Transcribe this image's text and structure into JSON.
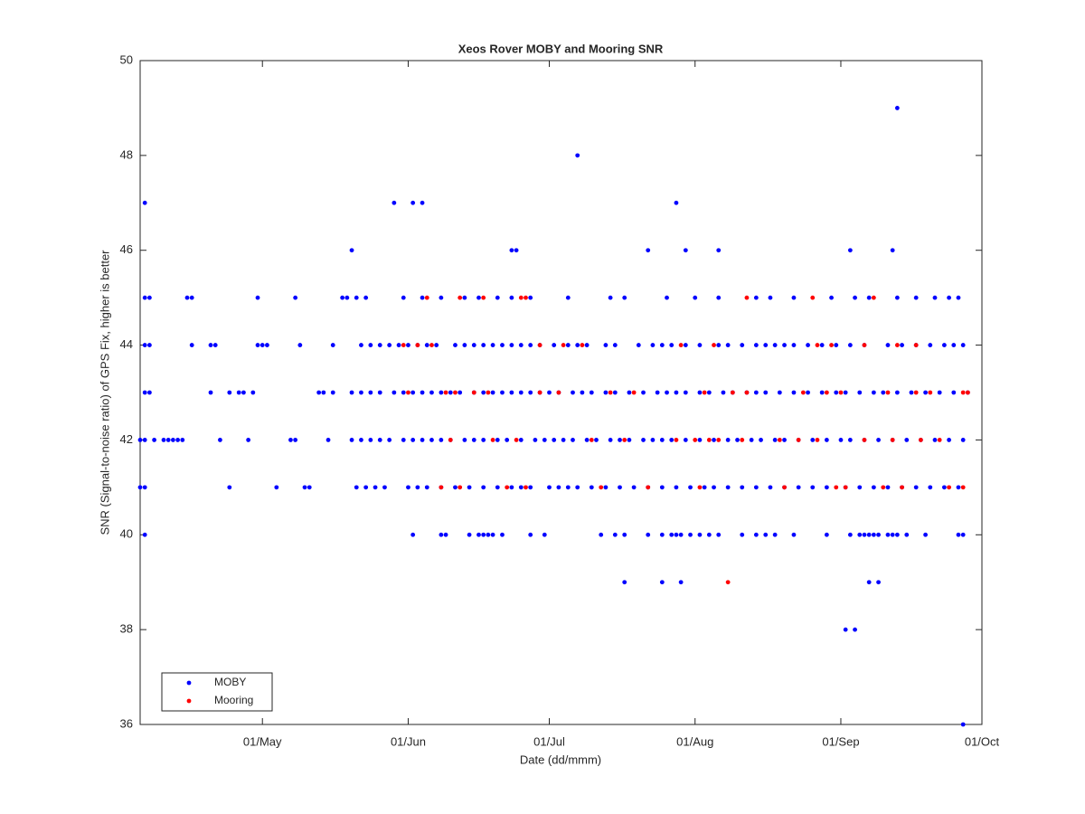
{
  "chart_data": {
    "type": "scatter",
    "title": "Xeos Rover MOBY and Mooring SNR",
    "x_label": "Date (dd/mmm)",
    "y_label": "SNR (Signal-to-noise ratio) of GPS Fix, higher is better",
    "xlim": [
      "05/Apr",
      "01/Oct"
    ],
    "xticks": [
      "01/May",
      "01/Jun",
      "01/Jul",
      "01/Aug",
      "01/Sep",
      "01/Oct"
    ],
    "ylim": [
      36,
      50
    ],
    "yticks": [
      36,
      38,
      40,
      42,
      44,
      46,
      48,
      50
    ],
    "legend": "southwest",
    "series": [
      {
        "name": "MOBY",
        "color": "#0000ff",
        "x": [
          "06/Apr",
          "29/May",
          "02/Jun",
          "04/Jun",
          "28/Jul",
          "13/Sep",
          "07/Jul",
          "20/May",
          "23/Jun",
          "24/Jun",
          "22/Jul",
          "30/Jul",
          "06/Aug",
          "03/Sep",
          "12/Sep",
          "06/Apr",
          "07/Apr",
          "15/Apr",
          "16/Apr",
          "30/Apr",
          "08/May",
          "18/May",
          "19/May",
          "21/May",
          "23/May",
          "31/May",
          "04/Jun",
          "08/Jun",
          "13/Jun",
          "16/Jun",
          "20/Jun",
          "23/Jun",
          "27/Jun",
          "05/Jul",
          "14/Jul",
          "17/Jul",
          "26/Jul",
          "01/Aug",
          "06/Aug",
          "14/Aug",
          "17/Aug",
          "22/Aug",
          "30/Aug",
          "04/Sep",
          "07/Sep",
          "13/Sep",
          "17/Sep",
          "21/Sep",
          "24/Sep",
          "26/Sep",
          "06/Apr",
          "07/Apr",
          "16/Apr",
          "20/Apr",
          "21/Apr",
          "30/Apr",
          "01/May",
          "02/May",
          "09/May",
          "16/May",
          "22/May",
          "24/May",
          "26/May",
          "28/May",
          "30/May",
          "01/Jun",
          "03/Jun",
          "05/Jun",
          "07/Jun",
          "11/Jun",
          "13/Jun",
          "15/Jun",
          "17/Jun",
          "19/Jun",
          "21/Jun",
          "23/Jun",
          "25/Jun",
          "27/Jun",
          "29/Jun",
          "02/Jul",
          "05/Jul",
          "07/Jul",
          "09/Jul",
          "13/Jul",
          "15/Jul",
          "20/Jul",
          "23/Jul",
          "25/Jul",
          "27/Jul",
          "30/Jul",
          "02/Aug",
          "06/Aug",
          "08/Aug",
          "11/Aug",
          "14/Aug",
          "16/Aug",
          "18/Aug",
          "20/Aug",
          "22/Aug",
          "25/Aug",
          "28/Aug",
          "31/Aug",
          "03/Sep",
          "06/Sep",
          "11/Sep",
          "14/Sep",
          "17/Sep",
          "20/Sep",
          "23/Sep",
          "25/Sep",
          "27/Sep",
          "06/Apr",
          "07/Apr",
          "20/Apr",
          "24/Apr",
          "26/Apr",
          "27/Apr",
          "29/Apr",
          "13/May",
          "14/May",
          "16/May",
          "20/May",
          "22/May",
          "24/May",
          "26/May",
          "29/May",
          "31/May",
          "02/Jun",
          "04/Jun",
          "06/Jun",
          "08/Jun",
          "10/Jun",
          "12/Jun",
          "15/Jun",
          "17/Jun",
          "19/Jun",
          "21/Jun",
          "23/Jun",
          "25/Jun",
          "27/Jun",
          "29/Jun",
          "01/Jul",
          "03/Jul",
          "06/Jul",
          "08/Jul",
          "10/Jul",
          "13/Jul",
          "15/Jul",
          "18/Jul",
          "21/Jul",
          "24/Jul",
          "26/Jul",
          "28/Jul",
          "30/Jul",
          "02/Aug",
          "04/Aug",
          "07/Aug",
          "09/Aug",
          "12/Aug",
          "14/Aug",
          "16/Aug",
          "19/Aug",
          "22/Aug",
          "25/Aug",
          "28/Aug",
          "31/Aug",
          "02/Sep",
          "05/Sep",
          "08/Sep",
          "10/Sep",
          "13/Sep",
          "16/Sep",
          "19/Sep",
          "22/Sep",
          "25/Sep",
          "28/Sep",
          "05/Apr",
          "06/Apr",
          "08/Apr",
          "10/Apr",
          "11/Apr",
          "12/Apr",
          "13/Apr",
          "14/Apr",
          "22/Apr",
          "28/Apr",
          "07/May",
          "08/May",
          "15/May",
          "20/May",
          "22/May",
          "24/May",
          "26/May",
          "28/May",
          "31/May",
          "02/Jun",
          "04/Jun",
          "06/Jun",
          "08/Jun",
          "10/Jun",
          "13/Jun",
          "15/Jun",
          "17/Jun",
          "20/Jun",
          "22/Jun",
          "25/Jun",
          "28/Jun",
          "30/Jun",
          "02/Jul",
          "04/Jul",
          "06/Jul",
          "09/Jul",
          "11/Jul",
          "14/Jul",
          "16/Jul",
          "18/Jul",
          "21/Jul",
          "23/Jul",
          "25/Jul",
          "27/Jul",
          "30/Jul",
          "02/Aug",
          "05/Aug",
          "08/Aug",
          "10/Aug",
          "13/Aug",
          "15/Aug",
          "18/Aug",
          "20/Aug",
          "23/Aug",
          "26/Aug",
          "29/Aug",
          "01/Sep",
          "03/Sep",
          "06/Sep",
          "09/Sep",
          "12/Sep",
          "15/Sep",
          "18/Sep",
          "21/Sep",
          "24/Sep",
          "27/Sep",
          "05/Apr",
          "06/Apr",
          "24/Apr",
          "04/May",
          "10/May",
          "11/May",
          "21/May",
          "23/May",
          "25/May",
          "27/May",
          "01/Jun",
          "03/Jun",
          "05/Jun",
          "08/Jun",
          "11/Jun",
          "14/Jun",
          "17/Jun",
          "20/Jun",
          "23/Jun",
          "25/Jun",
          "27/Jun",
          "01/Jul",
          "03/Jul",
          "05/Jul",
          "07/Jul",
          "10/Jul",
          "13/Jul",
          "16/Jul",
          "19/Jul",
          "22/Jul",
          "25/Jul",
          "28/Jul",
          "31/Jul",
          "03/Aug",
          "05/Aug",
          "08/Aug",
          "11/Aug",
          "14/Aug",
          "17/Aug",
          "20/Aug",
          "23/Aug",
          "26/Aug",
          "29/Aug",
          "02/Sep",
          "05/Sep",
          "08/Sep",
          "11/Sep",
          "14/Sep",
          "17/Sep",
          "20/Sep",
          "23/Sep",
          "26/Sep",
          "06/Apr",
          "02/Jun",
          "08/Jun",
          "09/Jun",
          "14/Jun",
          "16/Jun",
          "17/Jun",
          "18/Jun",
          "19/Jun",
          "21/Jun",
          "27/Jun",
          "30/Jun",
          "12/Jul",
          "15/Jul",
          "17/Jul",
          "22/Jul",
          "25/Jul",
          "27/Jul",
          "28/Jul",
          "29/Jul",
          "31/Jul",
          "02/Aug",
          "04/Aug",
          "06/Aug",
          "11/Aug",
          "14/Aug",
          "16/Aug",
          "18/Aug",
          "22/Aug",
          "29/Aug",
          "03/Sep",
          "05/Sep",
          "06/Sep",
          "07/Sep",
          "08/Sep",
          "09/Sep",
          "11/Sep",
          "12/Sep",
          "13/Sep",
          "15/Sep",
          "19/Sep",
          "26/Sep",
          "27/Sep",
          "17/Jul",
          "25/Jul",
          "29/Jul",
          "07/Sep",
          "09/Sep",
          "02/Sep",
          "04/Sep",
          "27/Sep"
        ],
        "values": [
          47,
          47,
          47,
          47,
          47,
          49,
          48,
          46,
          46,
          46,
          46,
          46,
          46,
          46,
          46,
          45,
          45,
          45,
          45,
          45,
          45,
          45,
          45,
          45,
          45,
          45,
          45,
          45,
          45,
          45,
          45,
          45,
          45,
          45,
          45,
          45,
          45,
          45,
          45,
          45,
          45,
          45,
          45,
          45,
          45,
          45,
          45,
          45,
          45,
          45,
          44,
          44,
          44,
          44,
          44,
          44,
          44,
          44,
          44,
          44,
          44,
          44,
          44,
          44,
          44,
          44,
          44,
          44,
          44,
          44,
          44,
          44,
          44,
          44,
          44,
          44,
          44,
          44,
          44,
          44,
          44,
          44,
          44,
          44,
          44,
          44,
          44,
          44,
          44,
          44,
          44,
          44,
          44,
          44,
          44,
          44,
          44,
          44,
          44,
          44,
          44,
          44,
          44,
          44,
          44,
          44,
          44,
          44,
          44,
          44,
          44,
          43,
          43,
          43,
          43,
          43,
          43,
          43,
          43,
          43,
          43,
          43,
          43,
          43,
          43,
          43,
          43,
          43,
          43,
          43,
          43,
          43,
          43,
          43,
          43,
          43,
          43,
          43,
          43,
          43,
          43,
          43,
          43,
          43,
          43,
          43,
          43,
          43,
          43,
          43,
          43,
          43,
          43,
          43,
          43,
          43,
          43,
          43,
          43,
          43,
          43,
          43,
          43,
          43,
          43,
          43,
          43,
          43,
          43,
          43,
          43,
          43,
          43,
          43,
          43,
          43,
          42,
          42,
          42,
          42,
          42,
          42,
          42,
          42,
          42,
          42,
          42,
          42,
          42,
          42,
          42,
          42,
          42,
          42,
          42,
          42,
          42,
          42,
          42,
          42,
          42,
          42,
          42,
          42,
          42,
          42,
          42,
          42,
          42,
          42,
          42,
          42,
          42,
          42,
          42,
          42,
          42,
          42,
          42,
          42,
          42,
          42,
          42,
          42,
          42,
          42,
          42,
          42,
          42,
          42,
          42,
          42,
          42,
          42,
          42,
          42,
          42,
          42,
          42,
          42,
          42,
          42,
          41,
          41,
          41,
          41,
          41,
          41,
          41,
          41,
          41,
          41,
          41,
          41,
          41,
          41,
          41,
          41,
          41,
          41,
          41,
          41,
          41,
          41,
          41,
          41,
          41,
          41,
          41,
          41,
          41,
          41,
          41,
          41,
          41,
          41,
          41,
          41,
          41,
          41,
          41,
          41,
          41,
          41,
          41,
          41,
          41,
          41,
          41,
          41,
          41,
          41,
          41,
          41,
          40,
          40,
          40,
          40,
          40,
          40,
          40,
          40,
          40,
          40,
          40,
          40,
          40,
          40,
          40,
          40,
          40,
          40,
          40,
          40,
          40,
          40,
          40,
          40,
          40,
          40,
          40,
          40,
          40,
          40,
          40,
          40,
          40,
          40,
          40,
          40,
          40,
          40,
          40,
          40,
          40,
          40,
          40,
          39,
          39,
          39,
          39,
          39,
          38,
          38,
          36
        ]
      },
      {
        "name": "Mooring",
        "color": "#ff0000",
        "x": [
          "05/Jun",
          "12/Jun",
          "17/Jun",
          "25/Jun",
          "26/Jun",
          "12/Aug",
          "26/Aug",
          "08/Sep",
          "31/May",
          "03/Jun",
          "06/Jun",
          "29/Jun",
          "04/Jul",
          "08/Jul",
          "29/Jul",
          "05/Aug",
          "27/Aug",
          "30/Aug",
          "06/Sep",
          "13/Sep",
          "17/Sep",
          "01/Jun",
          "09/Jun",
          "11/Jun",
          "15/Jun",
          "18/Jun",
          "29/Jun",
          "03/Jul",
          "14/Jul",
          "19/Jul",
          "03/Aug",
          "09/Aug",
          "12/Aug",
          "24/Aug",
          "29/Aug",
          "01/Sep",
          "11/Sep",
          "17/Sep",
          "20/Sep",
          "27/Sep",
          "28/Sep",
          "10/Jun",
          "19/Jun",
          "24/Jun",
          "10/Jul",
          "17/Jul",
          "28/Jul",
          "01/Aug",
          "04/Aug",
          "06/Aug",
          "11/Aug",
          "19/Aug",
          "23/Aug",
          "27/Aug",
          "06/Sep",
          "12/Sep",
          "18/Sep",
          "22/Sep",
          "08/Jun",
          "12/Jun",
          "22/Jun",
          "26/Jun",
          "12/Jul",
          "22/Jul",
          "02/Aug",
          "20/Aug",
          "31/Aug",
          "02/Sep",
          "10/Sep",
          "14/Sep",
          "24/Sep",
          "27/Sep",
          "08/Aug"
        ],
        "values": [
          45,
          45,
          45,
          45,
          45,
          45,
          45,
          45,
          44,
          44,
          44,
          44,
          44,
          44,
          44,
          44,
          44,
          44,
          44,
          44,
          44,
          43,
          43,
          43,
          43,
          43,
          43,
          43,
          43,
          43,
          43,
          43,
          43,
          43,
          43,
          43,
          43,
          43,
          43,
          43,
          43,
          42,
          42,
          42,
          42,
          42,
          42,
          42,
          42,
          42,
          42,
          42,
          42,
          42,
          42,
          42,
          42,
          42,
          41,
          41,
          41,
          41,
          41,
          41,
          41,
          41,
          41,
          41,
          41,
          41,
          41,
          41,
          39
        ]
      }
    ]
  }
}
